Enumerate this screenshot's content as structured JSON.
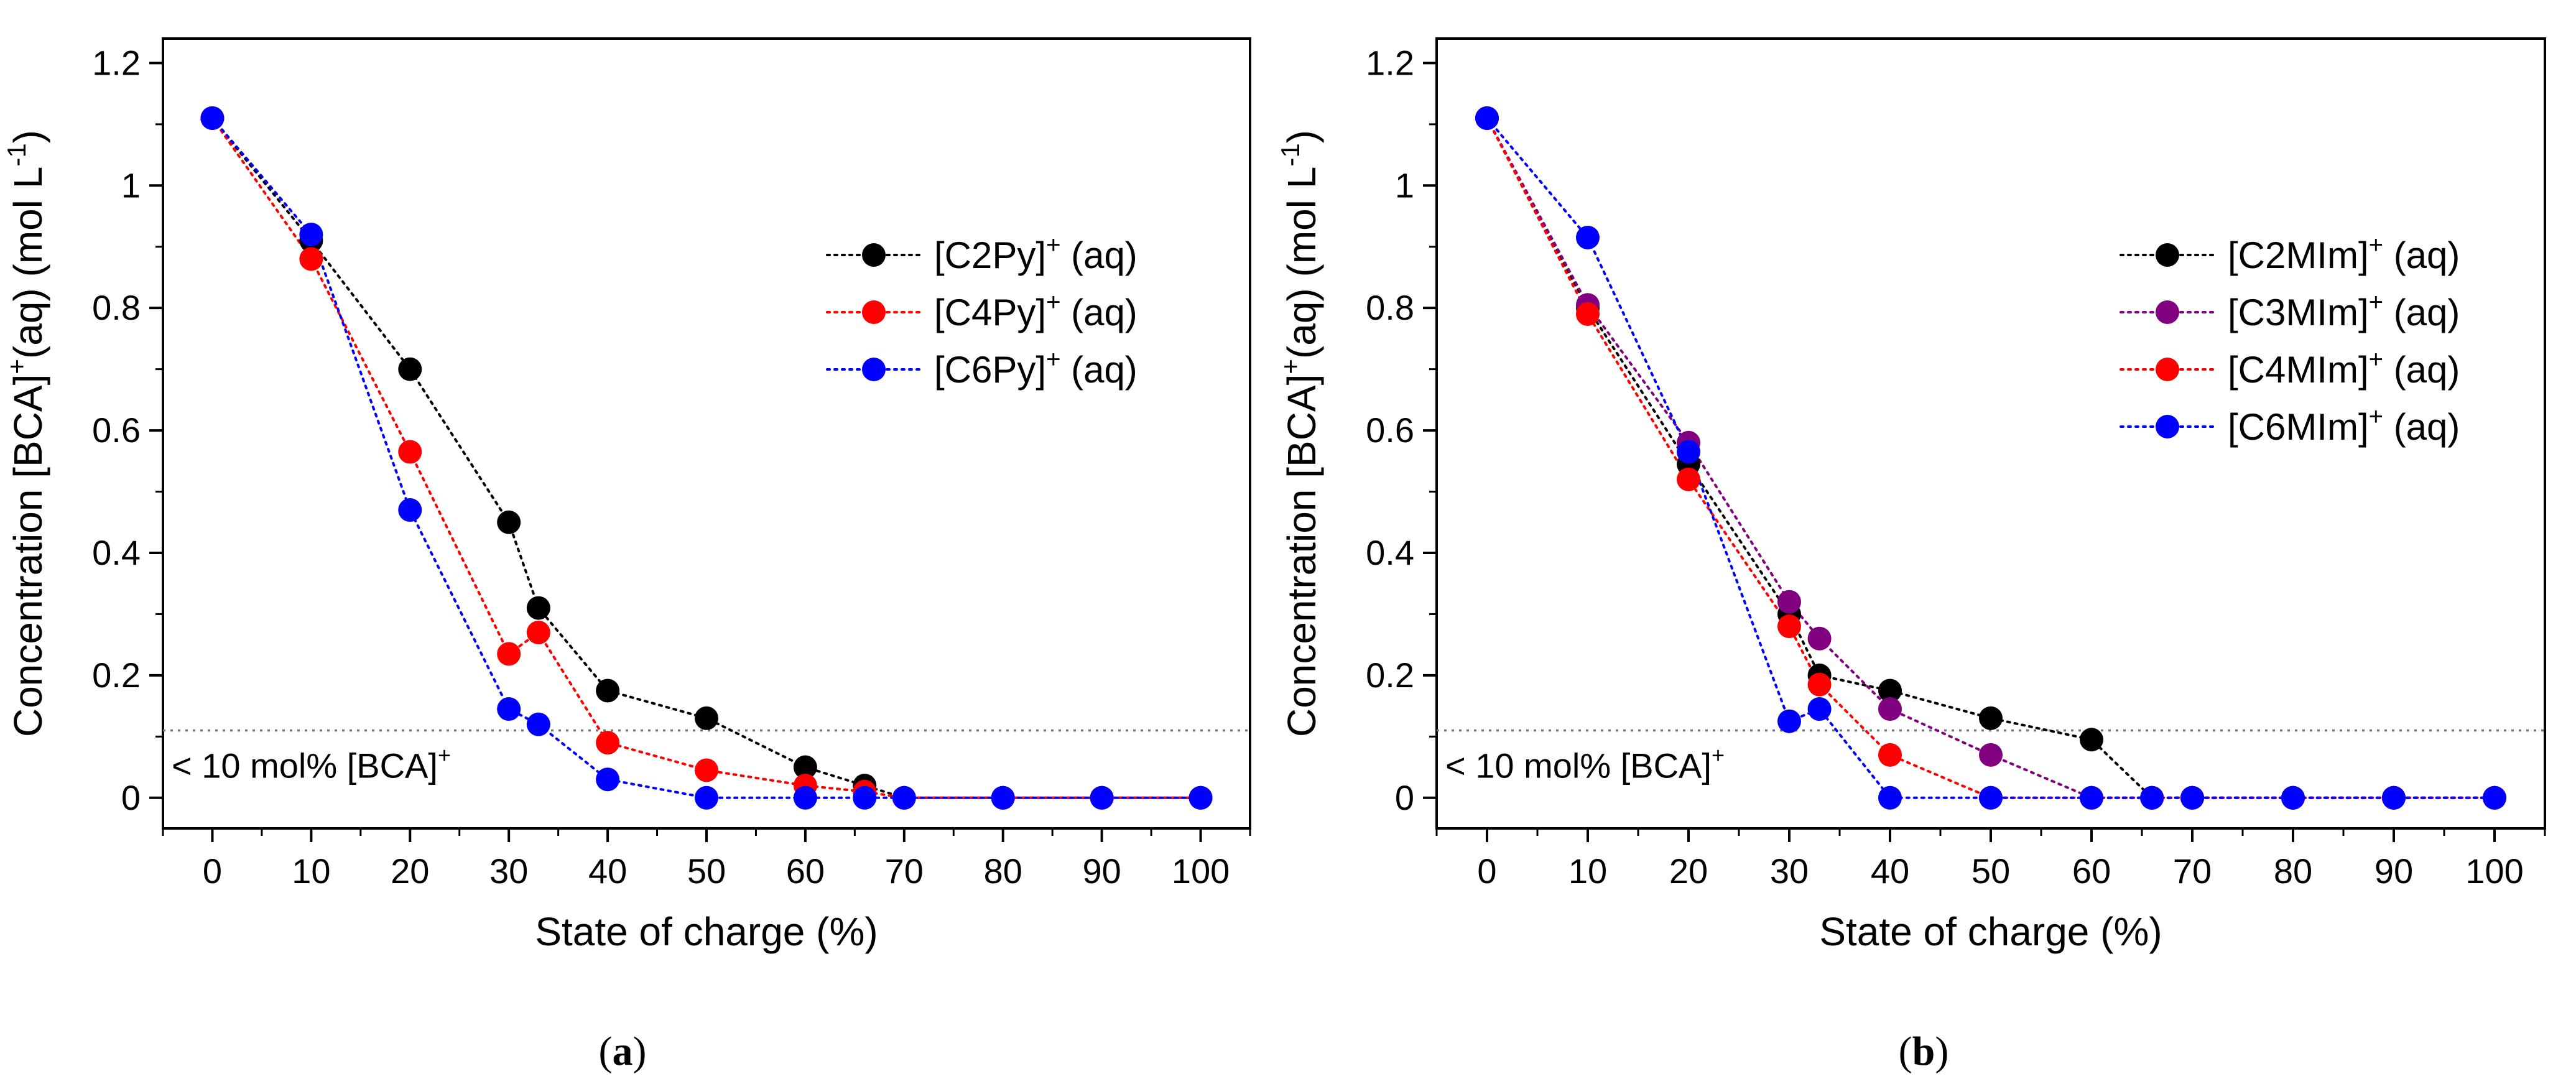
{
  "figure": {
    "panels": [
      "(a)",
      "(b)"
    ]
  },
  "chart_data": [
    {
      "type": "line",
      "panel_label": "(a)",
      "panel_label_letter": "a",
      "xlabel": "State of charge (%)",
      "ylabel_main": "Concentration [BCA]",
      "ylabel_sup": "+",
      "ylabel_mid": "(aq) (mol L",
      "ylabel_sup2": "-1",
      "ylabel_end": ")",
      "xlim": [
        -5,
        105
      ],
      "ylim": [
        -0.05,
        1.24
      ],
      "xticks": [
        0,
        10,
        20,
        30,
        40,
        50,
        60,
        70,
        80,
        90,
        100
      ],
      "yticks": [
        0,
        0.2,
        0.4,
        0.6,
        0.8,
        1,
        1.2
      ],
      "ytick_labels": [
        "0",
        "0.2",
        "0.4",
        "0.6",
        "0.8",
        "1",
        "1.2"
      ],
      "threshold": {
        "y": 0.11,
        "label": "< 10 mol% [BCA]",
        "label_sup": "+"
      },
      "legend_position": "upper-right",
      "series": [
        {
          "name": "[C2Py]",
          "name_sup": "+",
          "name_suffix": " (aq)",
          "color": "#000000",
          "x": [
            0,
            10,
            20,
            30,
            33,
            40,
            50,
            60,
            66,
            70,
            80,
            90,
            100
          ],
          "y": [
            1.11,
            0.91,
            0.7,
            0.45,
            0.31,
            0.175,
            0.13,
            0.05,
            0.02,
            0,
            0,
            0,
            0
          ]
        },
        {
          "name": "[C4Py]",
          "name_sup": "+",
          "name_suffix": " (aq)",
          "color": "#ff0000",
          "x": [
            0,
            10,
            20,
            30,
            33,
            40,
            50,
            60,
            66,
            70,
            80,
            90,
            100
          ],
          "y": [
            1.11,
            0.88,
            0.565,
            0.235,
            0.27,
            0.09,
            0.045,
            0.02,
            0.01,
            0,
            0,
            0,
            0
          ]
        },
        {
          "name": "[C6Py]",
          "name_sup": "+",
          "name_suffix": " (aq)",
          "color": "#0000ff",
          "x": [
            0,
            10,
            20,
            30,
            33,
            40,
            50,
            60,
            66,
            70,
            80,
            90,
            100
          ],
          "y": [
            1.11,
            0.92,
            0.47,
            0.145,
            0.12,
            0.03,
            0,
            0,
            0,
            0,
            0,
            0,
            0
          ]
        }
      ]
    },
    {
      "type": "line",
      "panel_label": "(b)",
      "panel_label_letter": "b",
      "xlabel": "State of charge (%)",
      "ylabel_main": "Concentration [BCA]",
      "ylabel_sup": "+",
      "ylabel_mid": "(aq) (mol L",
      "ylabel_sup2": "-1",
      "ylabel_end": ")",
      "xlim": [
        -5,
        105
      ],
      "ylim": [
        -0.05,
        1.24
      ],
      "xticks": [
        0,
        10,
        20,
        30,
        40,
        50,
        60,
        70,
        80,
        90,
        100
      ],
      "yticks": [
        0,
        0.2,
        0.4,
        0.6,
        0.8,
        1,
        1.2
      ],
      "ytick_labels": [
        "0",
        "0.2",
        "0.4",
        "0.6",
        "0.8",
        "1",
        "1.2"
      ],
      "threshold": {
        "y": 0.11,
        "label": "< 10 mol% [BCA]",
        "label_sup": "+"
      },
      "legend_position": "upper-right",
      "series": [
        {
          "name": "[C2MIm]",
          "name_sup": "+",
          "name_suffix": " (aq)",
          "color": "#000000",
          "x": [
            0,
            10,
            20,
            30,
            33,
            40,
            50,
            60,
            66,
            70,
            80,
            90,
            100
          ],
          "y": [
            1.11,
            0.8,
            0.545,
            0.3,
            0.2,
            0.175,
            0.13,
            0.095,
            0,
            0,
            0,
            0,
            0
          ]
        },
        {
          "name": "[C3MIm]",
          "name_sup": "+",
          "name_suffix": " (aq)",
          "color": "#800080",
          "x": [
            0,
            10,
            20,
            30,
            33,
            40,
            50,
            60,
            66,
            70,
            80,
            90,
            100
          ],
          "y": [
            1.11,
            0.805,
            0.58,
            0.32,
            0.26,
            0.145,
            0.07,
            0,
            0,
            0,
            0,
            0,
            0
          ]
        },
        {
          "name": "[C4MIm]",
          "name_sup": "+",
          "name_suffix": " (aq)",
          "color": "#ff0000",
          "x": [
            0,
            10,
            20,
            30,
            33,
            40,
            50,
            60,
            66,
            70,
            80,
            90,
            100
          ],
          "y": [
            1.11,
            0.79,
            0.52,
            0.28,
            0.185,
            0.07,
            0,
            0,
            0,
            0,
            0,
            0,
            0
          ]
        },
        {
          "name": "[C6MIm]",
          "name_sup": "+",
          "name_suffix": " (aq)",
          "color": "#0000ff",
          "x": [
            0,
            10,
            20,
            30,
            33,
            40,
            50,
            60,
            66,
            70,
            80,
            90,
            100
          ],
          "y": [
            1.11,
            0.915,
            0.565,
            0.125,
            0.145,
            0,
            0,
            0,
            0,
            0,
            0,
            0,
            0
          ]
        }
      ]
    }
  ]
}
